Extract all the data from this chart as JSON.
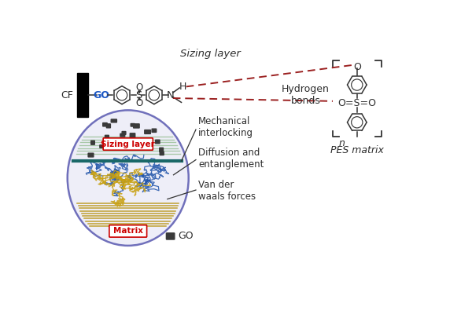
{
  "bg_color": "#ffffff",
  "text_color": "#2d2d2d",
  "blue_color": "#1a56c4",
  "red_color": "#cc0000",
  "dashed_color": "#9b2020",
  "bond_color": "#333333",
  "sizing_layer_label": "Sizing layer",
  "cf_label": "CF",
  "go_label": "GO",
  "h_label": "H",
  "h_bond_label": "Hydrogen\nbonds",
  "pes_label": "PES matrix",
  "n_label": "n",
  "o_label": "O",
  "s_label": "S",
  "n_atom_label": "N",
  "oso_label": "O=S=O",
  "mechanical_label": "Mechanical\ninterlocking",
  "diffusion_label": "Diffusion and\nentanglement",
  "vdw_label": "Van der\nwaals forces",
  "go_legend_label": "GO",
  "sizing_circle_label": "Sizing layer",
  "matrix_label": "Matrix",
  "fig_width": 6.0,
  "fig_height": 4.0,
  "dpi": 100
}
